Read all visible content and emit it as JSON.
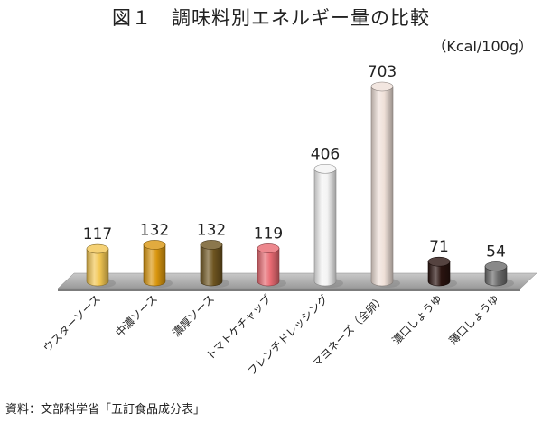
{
  "chart_data": {
    "type": "bar",
    "title": "図１　調味料別エネルギー量の比較",
    "unit": "（Kcal/100g）",
    "source": "資料：文部科学省「五訂食品成分表」",
    "categories": [
      "ウスターソース",
      "中濃ソース",
      "濃厚ソース",
      "トマトケチャップ",
      "フレンチドレッシング",
      "マヨネーズ（全卵）",
      "濃口しょうゆ",
      "薄口しょうゆ"
    ],
    "values": [
      117,
      132,
      132,
      119,
      406,
      703,
      71,
      54
    ],
    "colors": [
      "#f2c652",
      "#d9960f",
      "#6e5520",
      "#e86a72",
      "#f4f4f4",
      "#efe0d8",
      "#2a1410",
      "#6b6b6b"
    ],
    "ylim": [
      0,
      703
    ],
    "grid": false,
    "legend": "none"
  }
}
